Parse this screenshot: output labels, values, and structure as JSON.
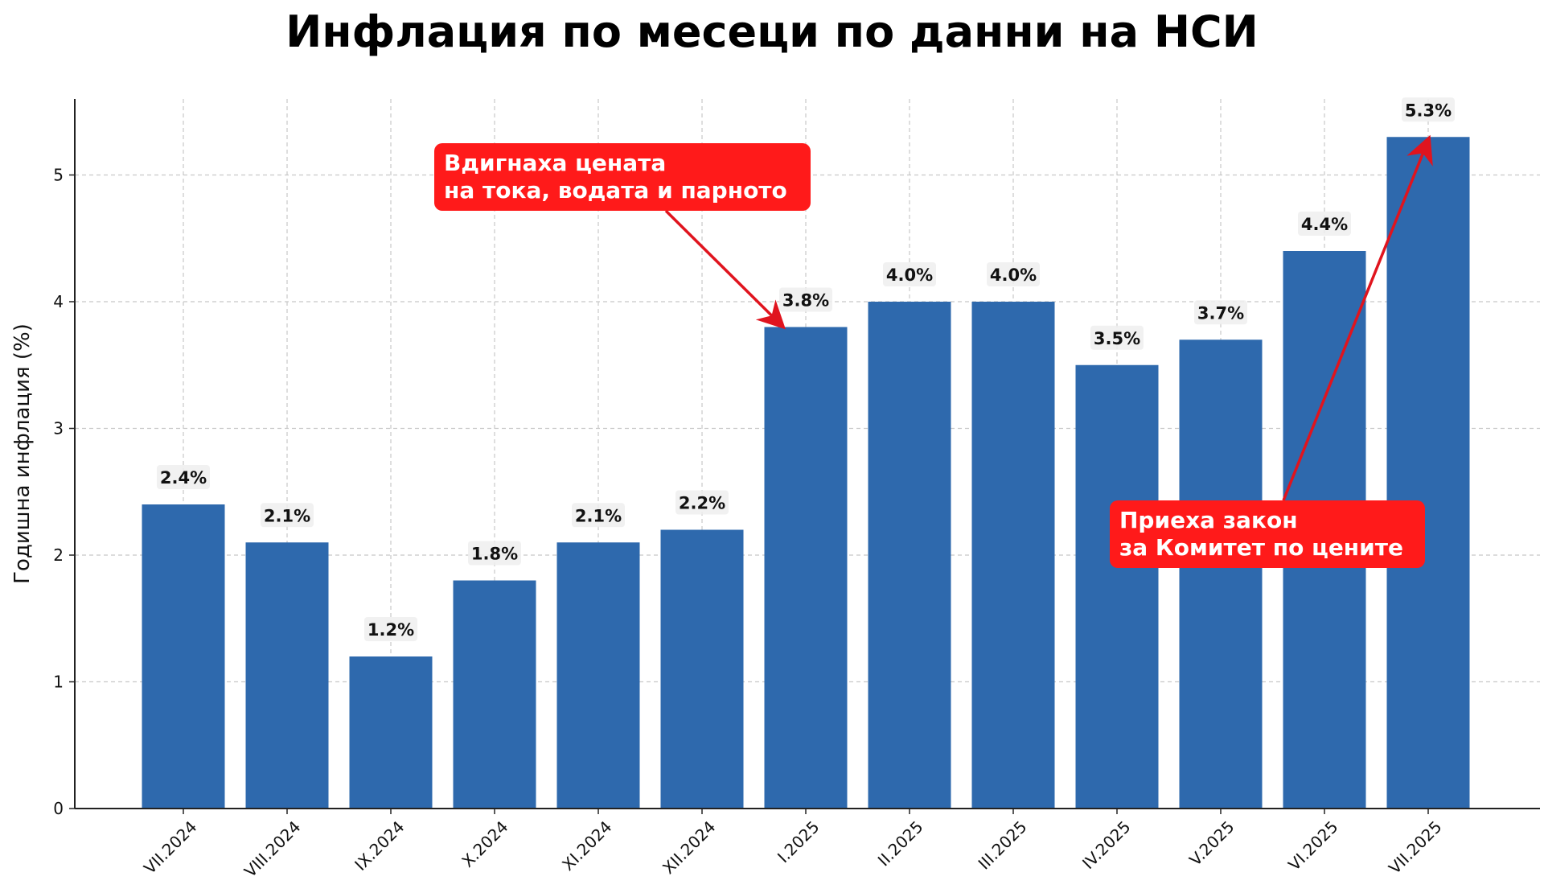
{
  "chart_data": {
    "type": "bar",
    "title": "Инфлация по месеци по данни на НСИ",
    "xlabel": "",
    "ylabel": "Годишна инфлация (%)",
    "categories": [
      "VII.2024",
      "VIII.2024",
      "IX.2024",
      "X.2024",
      "XI.2024",
      "XII.2024",
      "I.2025",
      "II.2025",
      "III.2025",
      "IV.2025",
      "V.2025",
      "VI.2025",
      "VII.2025"
    ],
    "values": [
      2.4,
      2.1,
      1.2,
      1.8,
      2.1,
      2.2,
      3.8,
      4.0,
      4.0,
      3.5,
      3.7,
      4.4,
      5.3
    ],
    "data_labels": [
      "2.4%",
      "2.1%",
      "1.2%",
      "1.8%",
      "2.1%",
      "2.2%",
      "3.8%",
      "4.0%",
      "4.0%",
      "3.5%",
      "3.7%",
      "4.4%",
      "5.3%"
    ],
    "ylim": [
      0,
      5.6
    ],
    "yticks": [
      0,
      1,
      2,
      3,
      4,
      5
    ],
    "grid": true,
    "bar_color": "#2e69ad",
    "annotations": [
      {
        "lines": [
          "Вдигнаха цената",
          "на тока, водата и парното"
        ],
        "target_category": "I.2025",
        "color": "#ff1a1a"
      },
      {
        "lines": [
          "Приеха закон",
          "за Комитет по цените"
        ],
        "target_category": "VII.2025",
        "color": "#ff1a1a"
      }
    ]
  }
}
